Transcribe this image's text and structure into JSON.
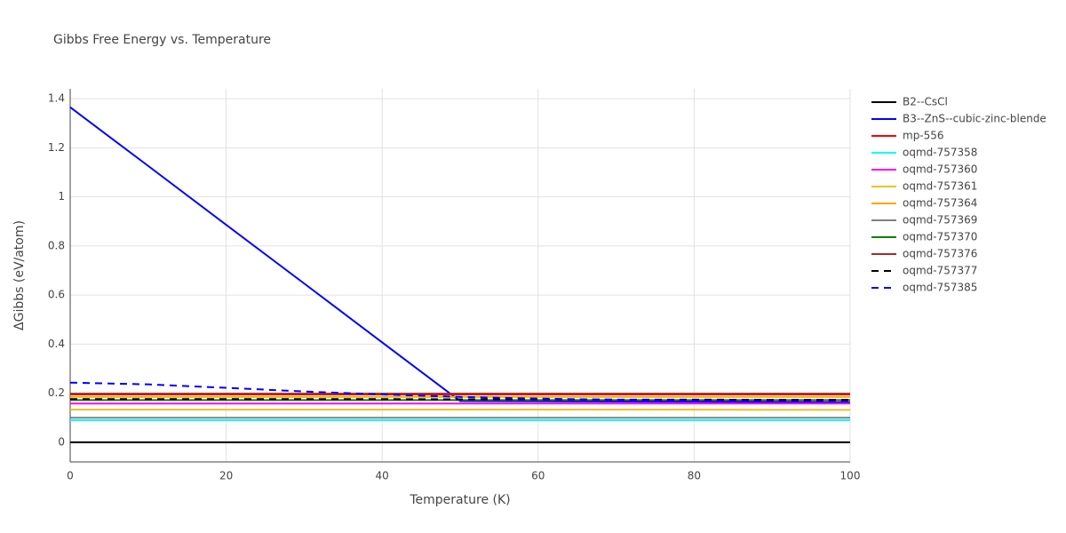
{
  "chart_data": {
    "type": "line",
    "title": "Gibbs Free Energy vs. Temperature",
    "x_label": "Temperature (K)",
    "y_label": "ΔGibbs (eV/atom)",
    "x": [
      0,
      10,
      20,
      30,
      40,
      50,
      60,
      70,
      80,
      90,
      100
    ],
    "xlim": [
      0,
      100
    ],
    "xticks": [
      0,
      20,
      40,
      60,
      80,
      100
    ],
    "ylim": [
      -0.08,
      1.44
    ],
    "yticks": [
      0,
      0.2,
      0.4,
      0.6,
      0.8,
      1,
      1.2,
      1.4
    ],
    "grid": true,
    "legend": "right",
    "series": [
      {
        "name": "B2--CsCl",
        "color": "#000000",
        "dash": false,
        "values": [
          0,
          0,
          0,
          0,
          0,
          0,
          0,
          0,
          0,
          0,
          0
        ]
      },
      {
        "name": "B3--ZnS--cubic-zinc-blende",
        "color": "#0000ff",
        "dash": false,
        "values": [
          1.365,
          1.126,
          0.886,
          0.647,
          0.407,
          0.168,
          0.167,
          0.166,
          0.165,
          0.164,
          0.163
        ]
      },
      {
        "name": "mp-556",
        "color": "#ff0000",
        "dash": false,
        "values": [
          0.195,
          0.195,
          0.195,
          0.195,
          0.195,
          0.195,
          0.195,
          0.195,
          0.195,
          0.195,
          0.195
        ]
      },
      {
        "name": "oqmd-757358",
        "color": "#00ffff",
        "dash": false,
        "values": [
          0.09,
          0.09,
          0.09,
          0.09,
          0.09,
          0.09,
          0.09,
          0.09,
          0.09,
          0.09,
          0.09
        ]
      },
      {
        "name": "oqmd-757360",
        "color": "#ff00ff",
        "dash": false,
        "values": [
          0.158,
          0.158,
          0.158,
          0.158,
          0.158,
          0.158,
          0.158,
          0.158,
          0.158,
          0.158,
          0.158
        ]
      },
      {
        "name": "oqmd-757361",
        "color": "#f0c020",
        "dash": false,
        "values": [
          0.133,
          0.133,
          0.133,
          0.133,
          0.133,
          0.133,
          0.133,
          0.133,
          0.133,
          0.132,
          0.132
        ]
      },
      {
        "name": "oqmd-757364",
        "color": "#ffa500",
        "dash": false,
        "values": [
          0.185,
          0.185,
          0.185,
          0.185,
          0.185,
          0.185,
          0.185,
          0.185,
          0.185,
          0.185,
          0.185
        ]
      },
      {
        "name": "oqmd-757369",
        "color": "#808080",
        "dash": false,
        "values": [
          0.1,
          0.1,
          0.1,
          0.1,
          0.1,
          0.1,
          0.1,
          0.1,
          0.1,
          0.1,
          0.1
        ]
      },
      {
        "name": "oqmd-757370",
        "color": "#008000",
        "dash": false,
        "values": [
          0.172,
          0.172,
          0.172,
          0.172,
          0.172,
          0.172,
          0.172,
          0.172,
          0.172,
          0.172,
          0.172
        ]
      },
      {
        "name": "oqmd-757376",
        "color": "#a52a2a",
        "dash": false,
        "values": [
          0.198,
          0.198,
          0.198,
          0.198,
          0.198,
          0.198,
          0.198,
          0.198,
          0.198,
          0.198,
          0.198
        ]
      },
      {
        "name": "oqmd-757377",
        "color": "#000000",
        "dash": true,
        "values": [
          0.176,
          0.176,
          0.176,
          0.176,
          0.176,
          0.175,
          0.175,
          0.174,
          0.174,
          0.173,
          0.173
        ]
      },
      {
        "name": "oqmd-757385",
        "color": "#0000ff",
        "dash": true,
        "values": [
          0.243,
          0.236,
          0.222,
          0.207,
          0.195,
          0.185,
          0.178,
          0.173,
          0.17,
          0.167,
          0.165
        ]
      }
    ]
  }
}
